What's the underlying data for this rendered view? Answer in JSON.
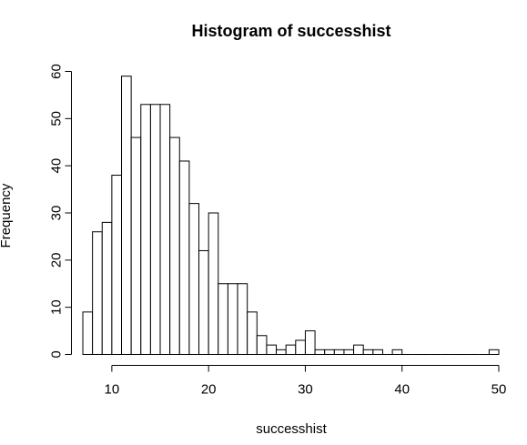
{
  "chart_data": {
    "type": "bar",
    "title": "Histogram of successhist",
    "xlabel": "successhist",
    "ylabel": "Frequency",
    "xlim": [
      7,
      50
    ],
    "ylim": [
      0,
      60
    ],
    "xticks": [
      10,
      20,
      30,
      40,
      50
    ],
    "yticks": [
      0,
      10,
      20,
      30,
      40,
      50,
      60
    ],
    "bin_width": 1,
    "bin_starts": [
      7,
      8,
      9,
      10,
      11,
      12,
      13,
      14,
      15,
      16,
      17,
      18,
      19,
      20,
      21,
      22,
      23,
      24,
      25,
      26,
      27,
      28,
      29,
      30,
      31,
      32,
      33,
      34,
      35,
      36,
      37,
      38,
      39,
      40,
      41,
      42,
      43,
      44,
      45,
      46,
      47,
      48,
      49
    ],
    "values": [
      9,
      26,
      28,
      38,
      59,
      46,
      53,
      53,
      53,
      46,
      41,
      32,
      22,
      30,
      15,
      15,
      15,
      9,
      4,
      2,
      1,
      2,
      3,
      5,
      1,
      1,
      1,
      1,
      2,
      1,
      1,
      0,
      1,
      0,
      0,
      0,
      0,
      0,
      0,
      0,
      0,
      0,
      1
    ]
  }
}
